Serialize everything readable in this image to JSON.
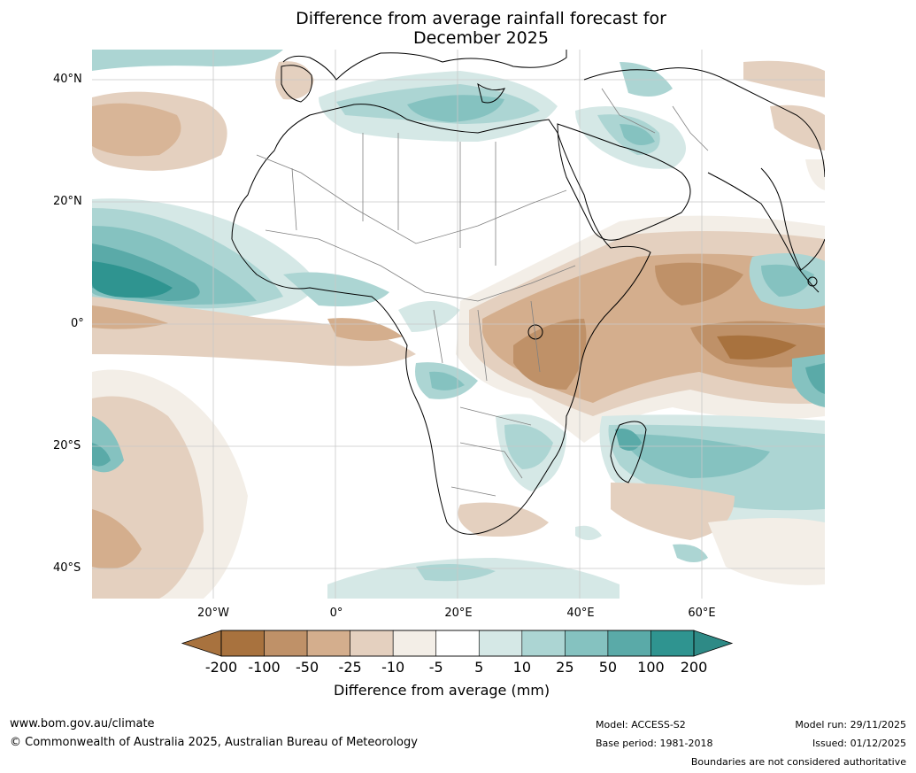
{
  "title": {
    "line1": "Difference from average rainfall forecast for",
    "line2": "December 2025"
  },
  "map": {
    "lat_labels": [
      "40°N",
      "20°N",
      "0°",
      "20°S",
      "40°S"
    ],
    "lon_labels": [
      "20°W",
      "0°",
      "20°E",
      "40°E",
      "60°E"
    ],
    "land_outline_color": "#000000",
    "border_color": "#808080",
    "grid_color": "#c8c8c8"
  },
  "colorbar": {
    "ticks": [
      "-200",
      "-100",
      "-50",
      "-25",
      "-10",
      "-5",
      "5",
      "10",
      "25",
      "50",
      "100",
      "200"
    ],
    "colors": [
      "#a8723e",
      "#bf9168",
      "#d4ae8d",
      "#e4d0bf",
      "#f3eee7",
      "#ffffff",
      "#d5e8e6",
      "#acd5d3",
      "#85c2c0",
      "#5aaaa8",
      "#2f9490"
    ],
    "under_color": "#a8723e",
    "over_color": "#2e8a86",
    "label": "Difference from average (mm)"
  },
  "footer": {
    "website": "www.bom.gov.au/climate",
    "copyright": "© Commonwealth of Australia 2025, Australian Bureau of Meteorology",
    "model": "Model: ACCESS-S2",
    "base_period": "Base period: 1981-2018",
    "model_run": "Model run: 29/11/2025",
    "issued": "Issued: 01/12/2025",
    "disclaimer": "Boundaries are not considered authoritative"
  }
}
